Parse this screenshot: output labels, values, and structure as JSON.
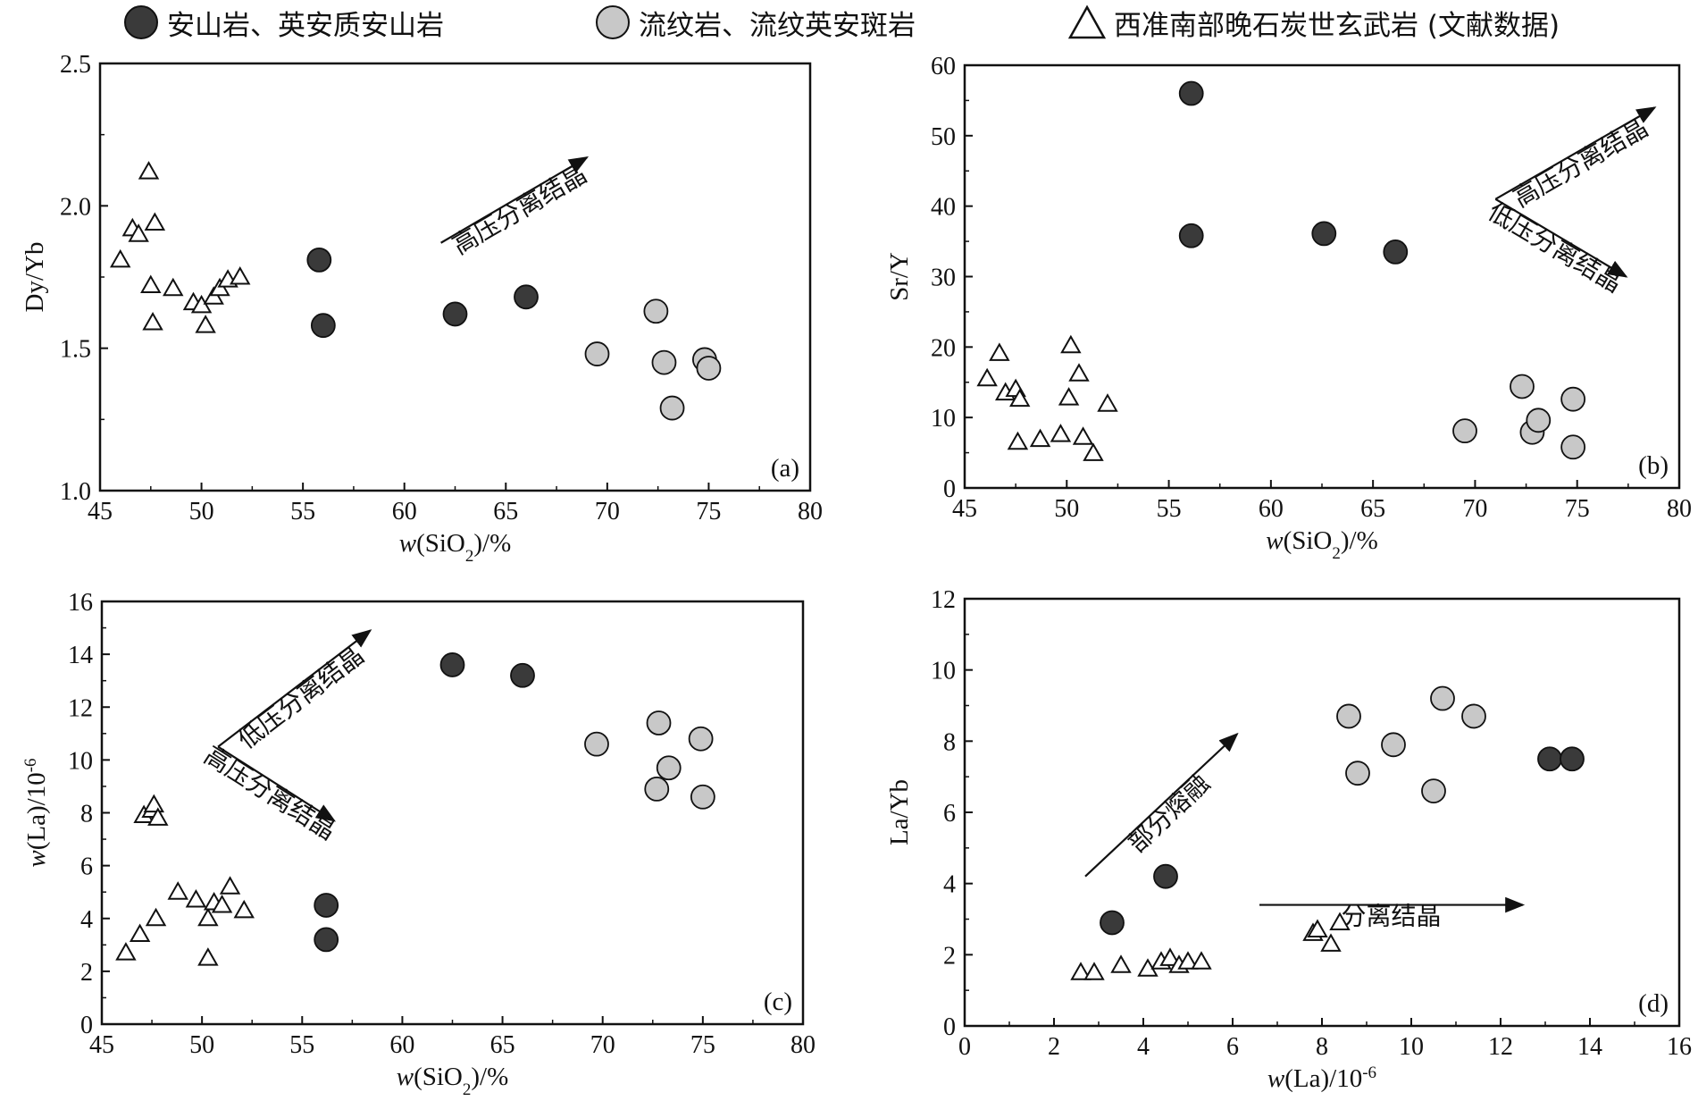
{
  "legend": {
    "andesite_label": "安山岩、英安质安山岩",
    "rhyolite_label": "流纹岩、流纹英安斑岩",
    "basalt_label": "西准南部晚石炭世玄武岩 (文献数据)"
  },
  "colors": {
    "andesite_fill": "#3a3a3a",
    "rhyolite_fill": "#c8c8c8",
    "basalt_fill": "#ffffff",
    "ink": "#111111"
  },
  "chart_data": [
    {
      "type": "scatter",
      "panel": "(a)",
      "xlabel": "w(SiO2)/%",
      "ylabel": "Dy/Yb",
      "xlim": [
        45,
        80
      ],
      "ylim": [
        1.0,
        2.5
      ],
      "xticks": [
        "45",
        "50",
        "55",
        "60",
        "65",
        "70",
        "75",
        "80"
      ],
      "yticks": [
        "1.0",
        "1.5",
        "2.0",
        "2.5"
      ],
      "annotations": [
        {
          "text": "高压分离结晶",
          "from": [
            61.8,
            1.87
          ],
          "to": [
            69.0,
            2.17
          ]
        }
      ],
      "series": [
        {
          "name": "安山岩、英安质安山岩",
          "marker": "circle-dark",
          "points": [
            [
              55.8,
              1.81
            ],
            [
              56.0,
              1.58
            ],
            [
              62.5,
              1.62
            ],
            [
              66.0,
              1.68
            ]
          ]
        },
        {
          "name": "流纹岩、流纹英安斑岩",
          "marker": "circle-light",
          "points": [
            [
              69.5,
              1.48
            ],
            [
              72.4,
              1.63
            ],
            [
              72.8,
              1.45
            ],
            [
              73.2,
              1.29
            ],
            [
              74.8,
              1.46
            ],
            [
              75.0,
              1.43
            ]
          ]
        },
        {
          "name": "西准南部晚石炭世玄武岩 (文献数据)",
          "marker": "triangle",
          "points": [
            [
              46.0,
              1.81
            ],
            [
              46.6,
              1.92
            ],
            [
              46.9,
              1.9
            ],
            [
              47.4,
              2.12
            ],
            [
              47.5,
              1.72
            ],
            [
              47.6,
              1.59
            ],
            [
              47.7,
              1.94
            ],
            [
              48.6,
              1.71
            ],
            [
              49.6,
              1.66
            ],
            [
              50.0,
              1.65
            ],
            [
              50.2,
              1.58
            ],
            [
              50.6,
              1.68
            ],
            [
              50.9,
              1.71
            ],
            [
              51.3,
              1.74
            ],
            [
              51.9,
              1.75
            ]
          ]
        }
      ]
    },
    {
      "type": "scatter",
      "panel": "(b)",
      "xlabel": "w(SiO2)/%",
      "ylabel": "Sr/Y",
      "xlim": [
        45,
        80
      ],
      "ylim": [
        0,
        60
      ],
      "xticks": [
        "45",
        "50",
        "55",
        "60",
        "65",
        "70",
        "75",
        "80"
      ],
      "yticks": [
        "0",
        "10",
        "20",
        "30",
        "40",
        "50",
        "60"
      ],
      "annotations": [
        {
          "text": "高压分离结晶",
          "from": [
            71.0,
            41.0
          ],
          "to": [
            78.8,
            54.0
          ]
        },
        {
          "text": "低压分离结晶",
          "from": [
            71.0,
            41.0
          ],
          "to": [
            77.4,
            30.0
          ]
        }
      ],
      "series": [
        {
          "name": "安山岩、英安质安山岩",
          "marker": "circle-dark",
          "points": [
            [
              56.1,
              56.0
            ],
            [
              56.1,
              35.8
            ],
            [
              62.6,
              36.1
            ],
            [
              66.1,
              33.5
            ]
          ]
        },
        {
          "name": "流纹岩、流纹英安斑岩",
          "marker": "circle-light",
          "points": [
            [
              69.5,
              8.1
            ],
            [
              72.3,
              14.4
            ],
            [
              72.8,
              7.9
            ],
            [
              73.1,
              9.6
            ],
            [
              74.8,
              12.6
            ],
            [
              74.8,
              5.8
            ]
          ]
        },
        {
          "name": "西准南部晚石炭世玄武岩 (文献数据)",
          "marker": "triangle",
          "points": [
            [
              46.1,
              15.5
            ],
            [
              46.7,
              19.1
            ],
            [
              47.0,
              13.5
            ],
            [
              47.5,
              14.0
            ],
            [
              47.7,
              12.6
            ],
            [
              47.6,
              6.5
            ],
            [
              48.7,
              6.9
            ],
            [
              49.7,
              7.6
            ],
            [
              50.1,
              12.8
            ],
            [
              50.2,
              20.2
            ],
            [
              50.6,
              16.2
            ],
            [
              50.8,
              7.2
            ],
            [
              51.3,
              4.9
            ],
            [
              52.0,
              11.9
            ]
          ]
        }
      ]
    },
    {
      "type": "scatter",
      "panel": "(c)",
      "xlabel": "w(SiO2)/%",
      "ylabel": "w(La)/10^-6",
      "xlim": [
        45,
        80
      ],
      "ylim": [
        0,
        16
      ],
      "xticks": [
        "45",
        "50",
        "55",
        "60",
        "65",
        "70",
        "75",
        "80"
      ],
      "yticks": [
        "0",
        "2",
        "4",
        "6",
        "8",
        "10",
        "12",
        "14",
        "16"
      ],
      "annotations": [
        {
          "text": "低压分离结晶",
          "from": [
            50.8,
            10.5
          ],
          "to": [
            58.4,
            14.9
          ]
        },
        {
          "text": "高压分离结晶",
          "from": [
            50.8,
            10.5
          ],
          "to": [
            56.6,
            7.7
          ]
        }
      ],
      "series": [
        {
          "name": "安山岩、英安质安山岩",
          "marker": "circle-dark",
          "points": [
            [
              56.2,
              4.5
            ],
            [
              56.2,
              3.2
            ],
            [
              62.5,
              13.6
            ],
            [
              66.0,
              13.2
            ]
          ]
        },
        {
          "name": "流纹岩、流纹英安斑岩",
          "marker": "circle-light",
          "points": [
            [
              69.7,
              10.6
            ],
            [
              72.8,
              11.4
            ],
            [
              72.7,
              8.9
            ],
            [
              73.3,
              9.7
            ],
            [
              74.9,
              10.8
            ],
            [
              75.0,
              8.6
            ]
          ]
        },
        {
          "name": "西准南部晚石炭世玄武岩 (文献数据)",
          "marker": "triangle",
          "points": [
            [
              46.2,
              2.7
            ],
            [
              46.9,
              3.4
            ],
            [
              47.1,
              7.9
            ],
            [
              47.5,
              8.1
            ],
            [
              47.6,
              8.3
            ],
            [
              47.8,
              7.8
            ],
            [
              47.7,
              4.0
            ],
            [
              48.8,
              5.0
            ],
            [
              49.7,
              4.7
            ],
            [
              50.3,
              4.0
            ],
            [
              50.3,
              2.5
            ],
            [
              50.6,
              4.6
            ],
            [
              51.0,
              4.5
            ],
            [
              51.4,
              5.2
            ],
            [
              52.1,
              4.3
            ]
          ]
        }
      ]
    },
    {
      "type": "scatter",
      "panel": "(d)",
      "xlabel": "w(La)/10^-6",
      "ylabel": "La/Yb",
      "xlim": [
        0,
        16
      ],
      "ylim": [
        0,
        12
      ],
      "xticks": [
        "0",
        "2",
        "4",
        "6",
        "8",
        "10",
        "12",
        "14",
        "16"
      ],
      "yticks": [
        "0",
        "2",
        "4",
        "6",
        "8",
        "10",
        "12"
      ],
      "annotations": [
        {
          "text": "部分熔融",
          "from": [
            2.7,
            4.2
          ],
          "to": [
            6.1,
            8.2
          ]
        },
        {
          "text": "分离结晶",
          "from": [
            6.6,
            3.4
          ],
          "to": [
            12.5,
            3.4
          ]
        }
      ],
      "series": [
        {
          "name": "安山岩、英安质安山岩",
          "marker": "circle-dark",
          "points": [
            [
              3.3,
              2.9
            ],
            [
              4.5,
              4.2
            ],
            [
              13.1,
              7.5
            ],
            [
              13.6,
              7.5
            ]
          ]
        },
        {
          "name": "流纹岩、流纹英安斑岩",
          "marker": "circle-light",
          "points": [
            [
              8.6,
              8.7
            ],
            [
              8.8,
              7.1
            ],
            [
              9.6,
              7.9
            ],
            [
              10.5,
              6.6
            ],
            [
              10.7,
              9.2
            ],
            [
              11.4,
              8.7
            ]
          ]
        },
        {
          "name": "西准南部晚石炭世玄武岩 (文献数据)",
          "marker": "triangle",
          "points": [
            [
              2.6,
              1.5
            ],
            [
              2.9,
              1.5
            ],
            [
              3.5,
              1.7
            ],
            [
              4.1,
              1.6
            ],
            [
              4.4,
              1.8
            ],
            [
              4.6,
              1.9
            ],
            [
              4.8,
              1.7
            ],
            [
              5.0,
              1.8
            ],
            [
              5.3,
              1.8
            ],
            [
              7.8,
              2.6
            ],
            [
              7.9,
              2.7
            ],
            [
              8.2,
              2.3
            ],
            [
              8.4,
              2.9
            ]
          ]
        }
      ]
    }
  ]
}
